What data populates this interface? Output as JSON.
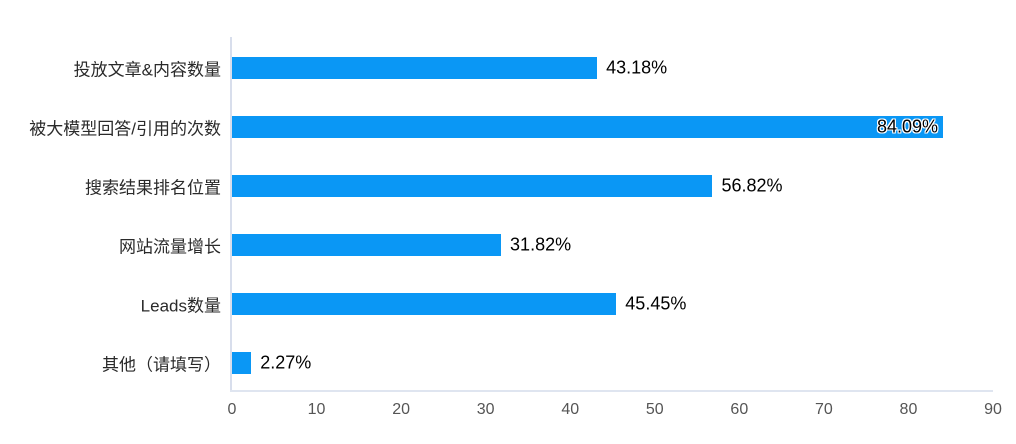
{
  "colors": {
    "background": "#ffffff",
    "bar": "#0a97f5",
    "axis_line": "#d8deec",
    "axis_line_bottom": "#dfe5f0",
    "category_text": "#2a2a2a",
    "value_text": "#000000",
    "tick_text": "#555555"
  },
  "chart_data": {
    "type": "bar",
    "orientation": "horizontal",
    "title": "",
    "categories": [
      "投放文章&内容数量",
      "被大模型回答/引用的次数",
      "搜索结果排名位置",
      "网站流量增长",
      "Leads数量",
      "其他（请填写）"
    ],
    "values": [
      43.18,
      84.09,
      56.82,
      31.82,
      45.45,
      2.27
    ],
    "value_labels": [
      "43.18%",
      "84.09%",
      "56.82%",
      "31.82%",
      "45.45%",
      "2.27%"
    ],
    "x_ticks": [
      0,
      10,
      20,
      30,
      40,
      50,
      60,
      70,
      80,
      90
    ],
    "x_tick_labels": [
      "0",
      "10",
      "20",
      "30",
      "40",
      "50",
      "60",
      "70",
      "80",
      "90"
    ],
    "xlim": [
      0,
      90
    ],
    "xlabel": "",
    "ylabel": "",
    "grid": false,
    "legend": false,
    "value_label_format": "percent"
  }
}
